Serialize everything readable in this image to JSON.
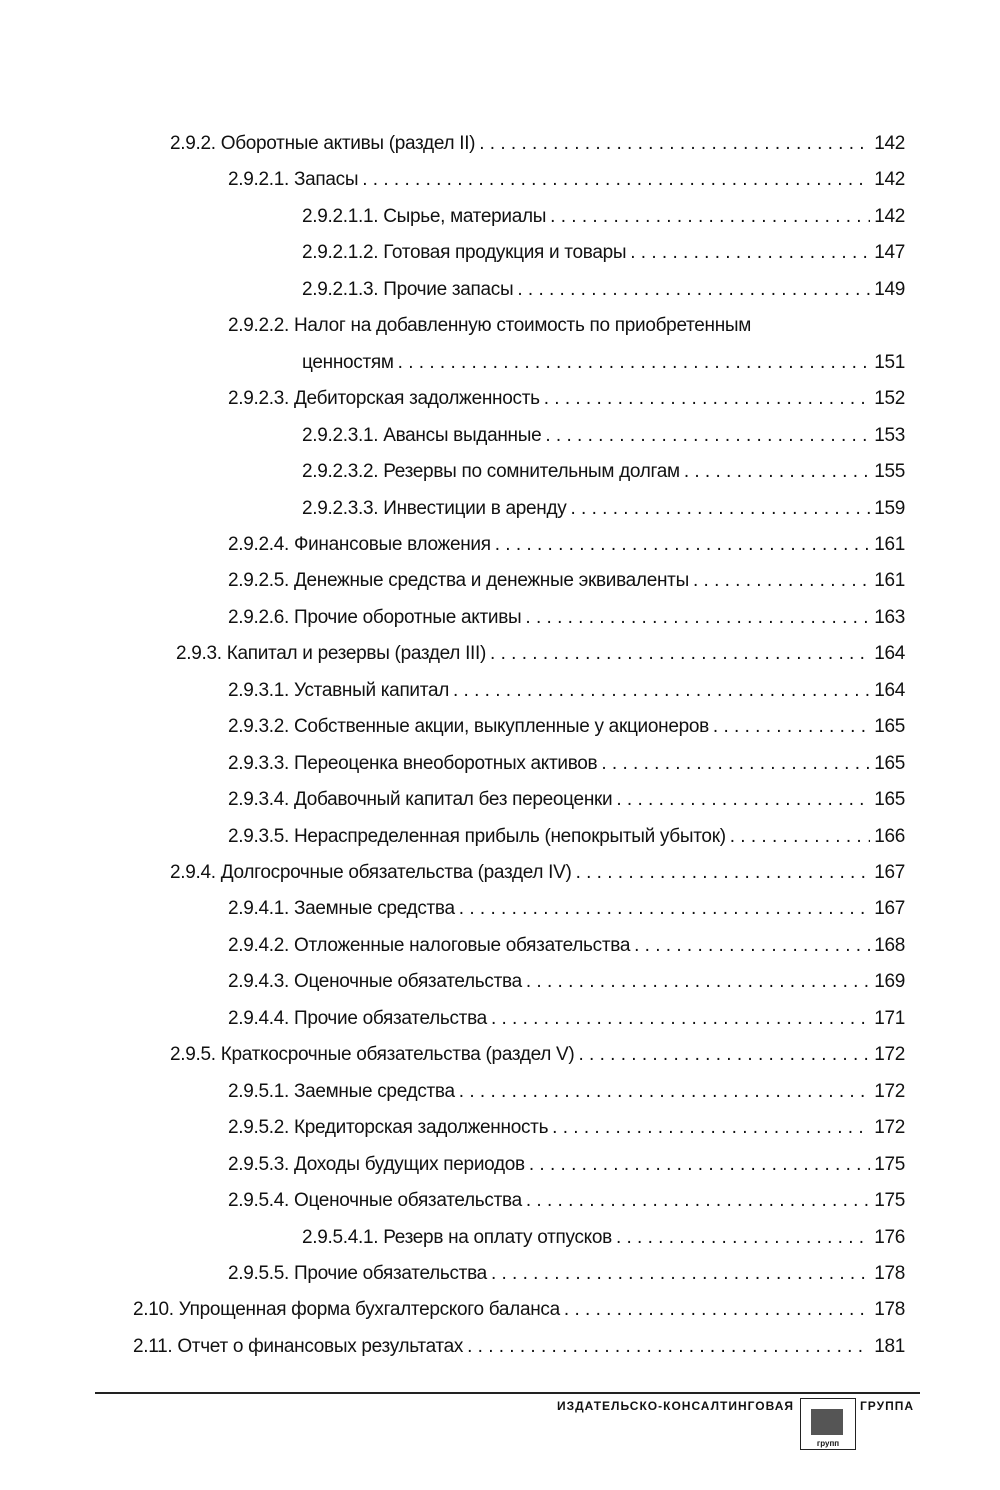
{
  "toc": [
    {
      "level": 1,
      "title": "2.9.2. Оборотные активы (раздел II)",
      "page": "142"
    },
    {
      "level": 2,
      "title": "2.9.2.1. Запасы",
      "page": "142"
    },
    {
      "level": 3,
      "title": "2.9.2.1.1. Сырье, материалы",
      "page": "142"
    },
    {
      "level": 3,
      "title": "2.9.2.1.2. Готовая продукция и товары",
      "page": "147"
    },
    {
      "level": 3,
      "title": "2.9.2.1.3. Прочие запасы",
      "page": "149"
    },
    {
      "level": 2,
      "title": "2.9.2.2. Налог на добавленную стоимость по приобретенным",
      "continuation": "ценностям",
      "page": "151"
    },
    {
      "level": 2,
      "title": "2.9.2.3. Дебиторская задолженность",
      "page": "152"
    },
    {
      "level": 3,
      "title": "2.9.2.3.1. Авансы выданные",
      "page": "153"
    },
    {
      "level": 3,
      "title": "2.9.2.3.2. Резервы по сомнительным долгам",
      "page": "155"
    },
    {
      "level": 3,
      "title": "2.9.2.3.3. Инвестиции в аренду",
      "page": "159"
    },
    {
      "level": 2,
      "title": "2.9.2.4. Финансовые вложения",
      "page": "161"
    },
    {
      "level": 2,
      "title": "2.9.2.5. Денежные средства и денежные эквиваленты",
      "page": "161"
    },
    {
      "level": 2,
      "title": "2.9.2.6. Прочие оборотные активы",
      "page": "163"
    },
    {
      "level": 1,
      "title": "2.9.3. Капитал и резервы (раздел III)",
      "page": "164"
    },
    {
      "level": 2,
      "title": "2.9.3.1. Уставный капитал",
      "page": "164"
    },
    {
      "level": 2,
      "title": "2.9.3.2. Собственные акции, выкупленные у акционеров",
      "page": "165"
    },
    {
      "level": 2,
      "title": "2.9.3.3. Переоценка внеоборотных активов",
      "page": "165"
    },
    {
      "level": 2,
      "title": "2.9.3.4. Добавочный капитал без переоценки",
      "page": "165"
    },
    {
      "level": 2,
      "title": "2.9.3.5. Нераспределенная прибыль (непокрытый убыток)",
      "page": "166"
    },
    {
      "level": 1,
      "title": "2.9.4. Долгосрочные обязательства (раздел IV)",
      "page": "167"
    },
    {
      "level": 2,
      "title": "2.9.4.1. Заемные средства",
      "page": "167"
    },
    {
      "level": 2,
      "title": "2.9.4.2. Отложенные налоговые обязательства",
      "page": "168"
    },
    {
      "level": 2,
      "title": "2.9.4.3. Оценочные обязательства",
      "page": "169"
    },
    {
      "level": 2,
      "title": "2.9.4.4. Прочие обязательства",
      "page": "171"
    },
    {
      "level": 1,
      "title": "2.9.5. Краткосрочные обязательства (раздел V)",
      "page": "172"
    },
    {
      "level": 2,
      "title": "2.9.5.1. Заемные средства",
      "page": "172"
    },
    {
      "level": 2,
      "title": "2.9.5.2. Кредиторская задолженность",
      "page": "172"
    },
    {
      "level": 2,
      "title": "2.9.5.3. Доходы будущих периодов",
      "page": "175"
    },
    {
      "level": 2,
      "title": "2.9.5.4. Оценочные обязательства",
      "page": "175"
    },
    {
      "level": 3,
      "title": "2.9.5.4.1. Резерв на оплату отпусков",
      "page": "176"
    },
    {
      "level": 2,
      "title": "2.9.5.5. Прочие обязательства",
      "page": "178"
    },
    {
      "level": 0,
      "title": "2.10. Упрощенная форма бухгалтерского баланса",
      "page": "178"
    },
    {
      "level": 0,
      "title": "2.11. Отчет о финансовых результатах",
      "page": "181"
    }
  ],
  "footer": {
    "publisher_left": "ИЗДАТЕЛЬСКО-КОНСАЛТИНГОВАЯ",
    "publisher_right": "ГРУППА",
    "logo_text": "групп"
  }
}
